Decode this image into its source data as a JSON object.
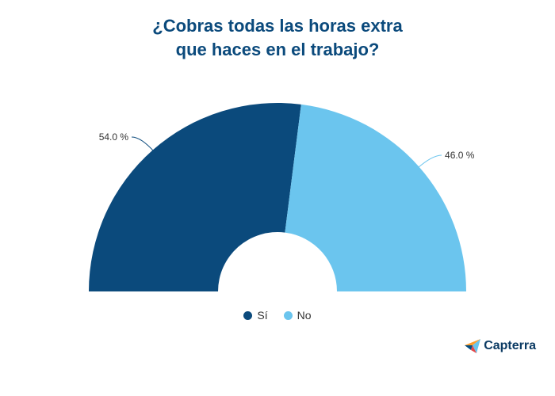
{
  "title": {
    "line1": "¿Cobras todas las horas extra",
    "line2": "que haces en el trabajo?"
  },
  "chart_data": {
    "type": "pie",
    "variant": "semicircle-donut",
    "title": "¿Cobras todas las horas extra que haces en el trabajo?",
    "categories": [
      "Sí",
      "No"
    ],
    "values": [
      54.0,
      46.0
    ],
    "labels": [
      "54.0 %",
      "46.0 %"
    ],
    "colors": [
      "#0b4a7c",
      "#6bc5ee"
    ],
    "legend_placement": "bottom-center"
  },
  "brand": {
    "name": "Capterra",
    "icon": "capterra-logo-icon"
  }
}
